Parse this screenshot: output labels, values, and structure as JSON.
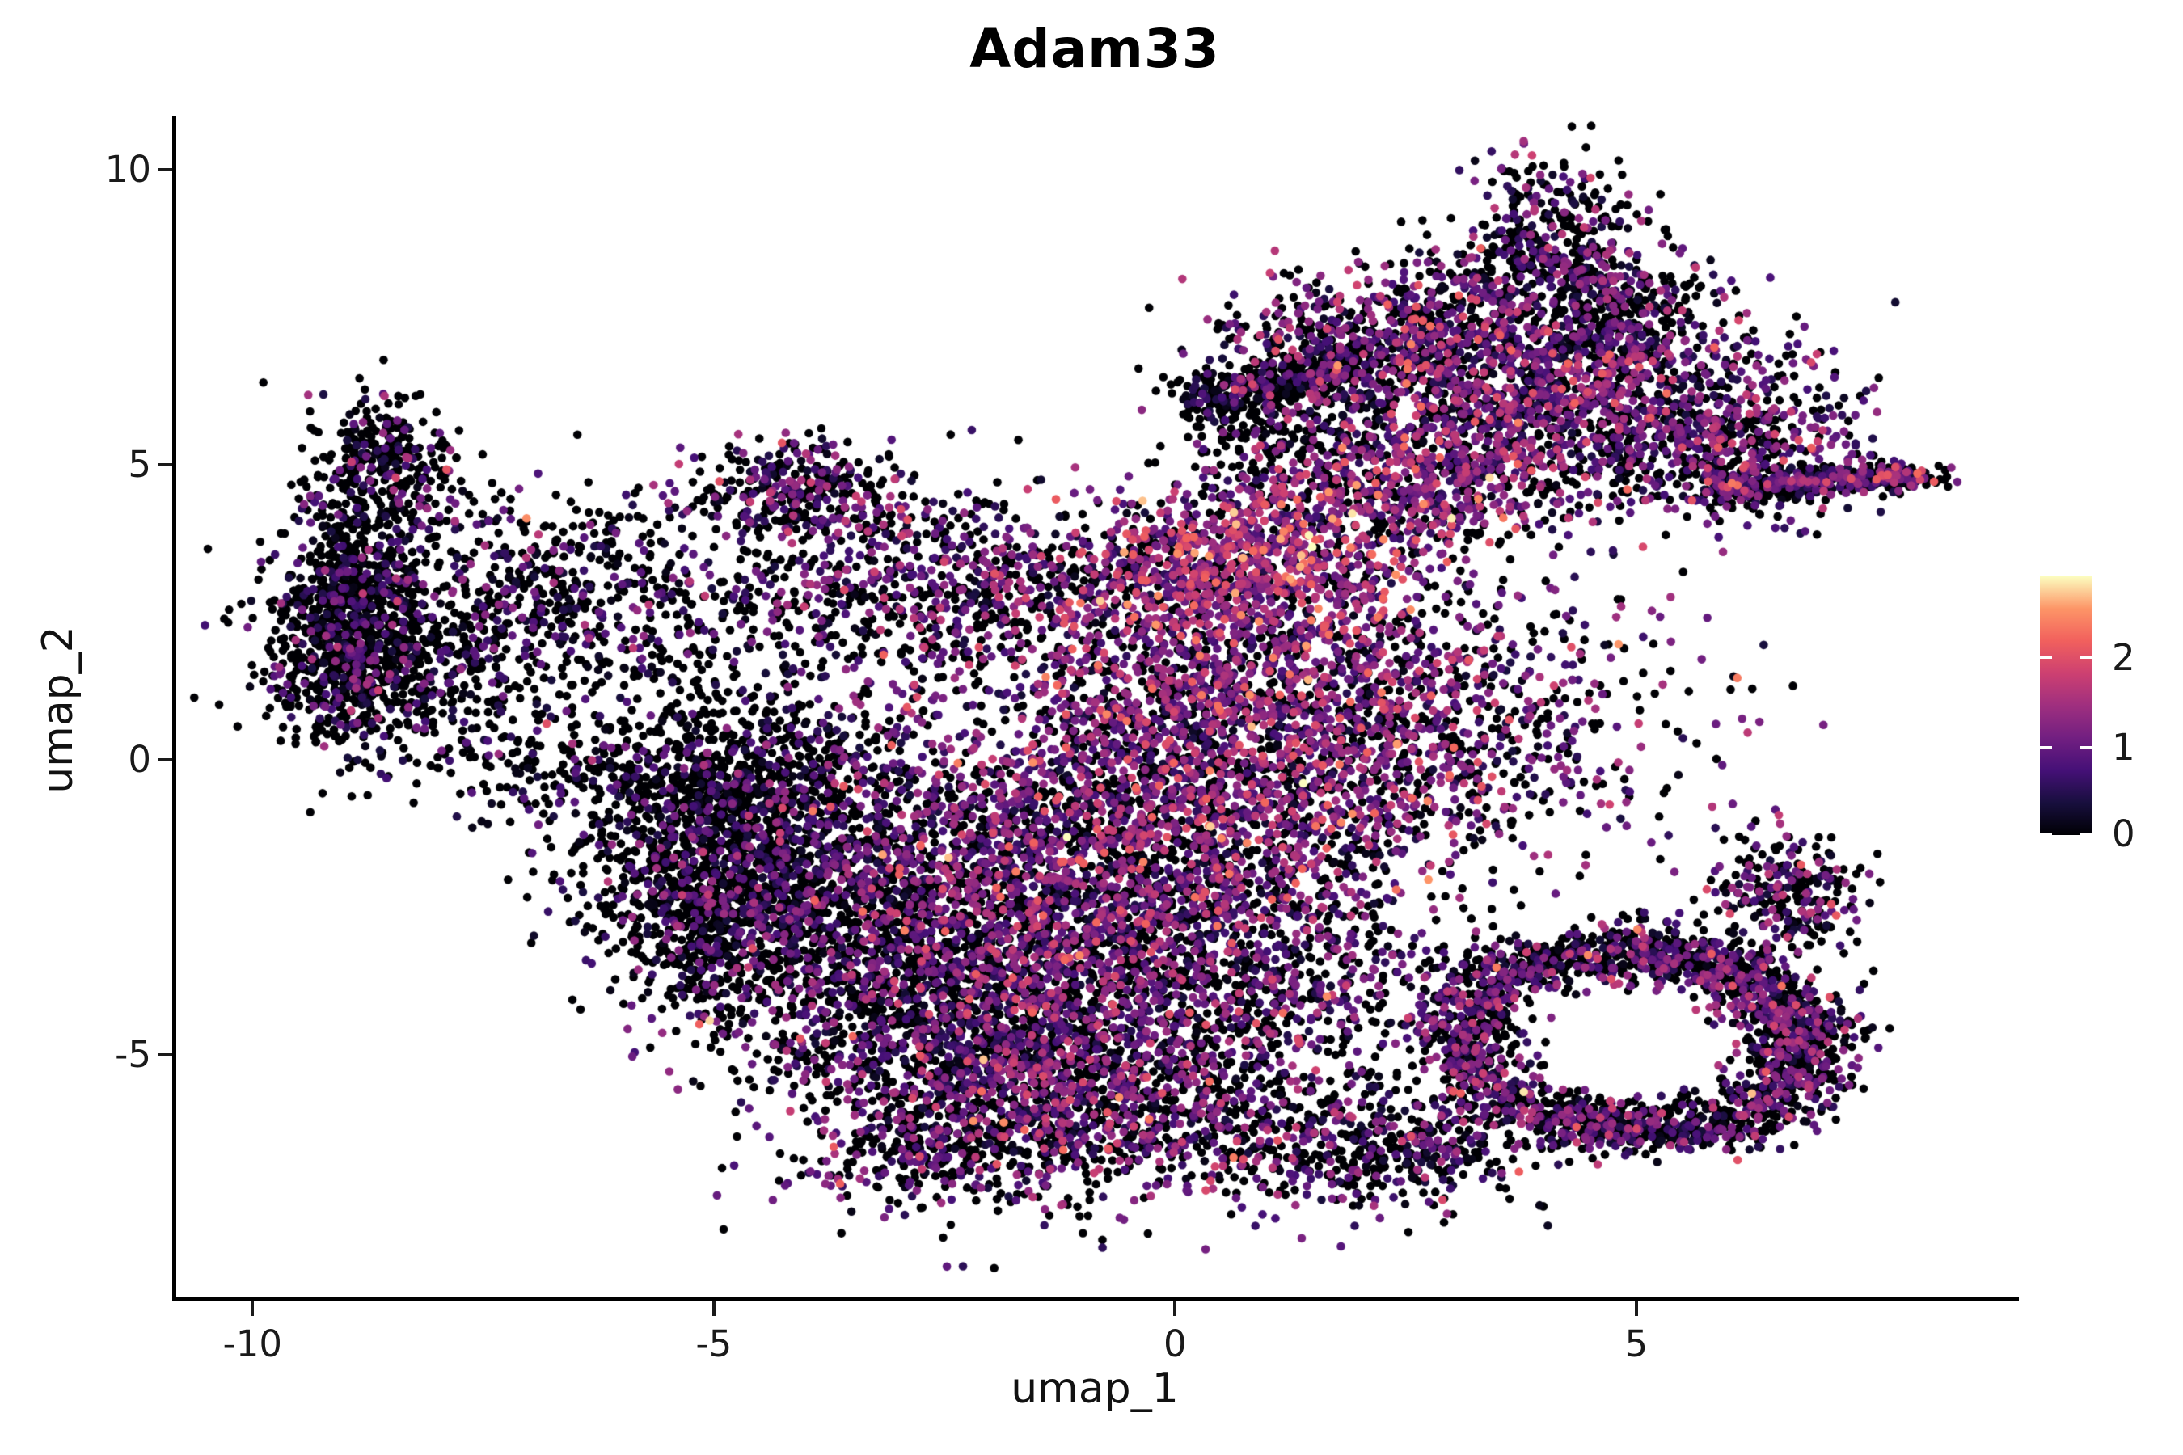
{
  "title": "Adam33",
  "axes": {
    "x": {
      "label": "umap_1",
      "ticks": [
        -10,
        -5,
        0,
        5
      ],
      "range": [
        -10.87,
        9.13
      ]
    },
    "y": {
      "label": "umap_2",
      "ticks": [
        10,
        5,
        0,
        -5
      ],
      "range": [
        -9.11,
        10.92
      ]
    }
  },
  "colorbar": {
    "ticks": [
      0,
      1,
      2
    ],
    "vmin": 0,
    "vmax": 2.9,
    "orientation": "vertical",
    "stops": [
      "#000004",
      "#180f3e",
      "#451077",
      "#721f81",
      "#9f2f7f",
      "#cd4071",
      "#f1605d",
      "#fd9567",
      "#fcfdbf"
    ]
  },
  "chart_data": {
    "type": "scatter",
    "title": "Adam33",
    "xlabel": "umap_1",
    "ylabel": "umap_2",
    "x_range": [
      -10.87,
      9.13
    ],
    "y_range": [
      -9.11,
      10.92
    ],
    "grid": false,
    "legend_position": "right",
    "color_scale": "magma",
    "value_range": [
      0,
      2.87
    ],
    "point_radius_px": 5.3,
    "seed": 20240817,
    "n_points_total": 23390,
    "clusters": [
      {
        "type": "gauss",
        "cx": -8.95,
        "cy": 2.4,
        "sx": 0.42,
        "sy": 1.05,
        "n": 850,
        "p_zero": 0.74,
        "expr_mean": 0.65,
        "expr_sd": 0.45
      },
      {
        "type": "gauss",
        "cx": -8.55,
        "cy": 4.95,
        "sx": 0.38,
        "sy": 0.62,
        "n": 330,
        "p_zero": 0.7,
        "expr_mean": 0.7,
        "expr_sd": 0.5
      },
      {
        "type": "gauss",
        "cx": -8.15,
        "cy": 1.5,
        "sx": 0.75,
        "sy": 0.8,
        "n": 400,
        "p_zero": 0.72,
        "expr_mean": 0.6,
        "expr_sd": 0.45
      },
      {
        "type": "gauss",
        "cx": -7.1,
        "cy": 2.9,
        "sx": 1.1,
        "sy": 0.85,
        "n": 380,
        "p_zero": 0.66,
        "expr_mean": 0.65,
        "expr_sd": 0.45
      },
      {
        "type": "gauss",
        "cx": -5.8,
        "cy": 2.7,
        "sx": 1.0,
        "sy": 0.8,
        "n": 230,
        "p_zero": 0.6,
        "expr_mean": 0.7,
        "expr_sd": 0.5
      },
      {
        "type": "gauss",
        "cx": -6.3,
        "cy": -0.1,
        "sx": 0.9,
        "sy": 0.6,
        "n": 240,
        "p_zero": 0.7,
        "expr_mean": 0.6,
        "expr_sd": 0.45
      },
      {
        "type": "gauss",
        "cx": -4.05,
        "cy": 4.5,
        "sx": 0.6,
        "sy": 0.42,
        "n": 330,
        "p_zero": 0.55,
        "expr_mean": 0.85,
        "expr_sd": 0.5
      },
      {
        "type": "gauss",
        "cx": -3.3,
        "cy": 2.8,
        "sx": 0.95,
        "sy": 0.85,
        "n": 300,
        "p_zero": 0.5,
        "expr_mean": 0.85,
        "expr_sd": 0.5
      },
      {
        "type": "gauss",
        "cx": -4.75,
        "cy": -0.9,
        "sx": 0.8,
        "sy": 1.15,
        "n": 1250,
        "p_zero": 0.78,
        "expr_mean": 0.6,
        "expr_sd": 0.4
      },
      {
        "type": "gauss",
        "cx": -5.2,
        "cy": -2.7,
        "sx": 0.6,
        "sy": 0.8,
        "n": 380,
        "p_zero": 0.74,
        "expr_mean": 0.6,
        "expr_sd": 0.4
      },
      {
        "type": "gauss",
        "cx": -3.6,
        "cy": -2.9,
        "sx": 1.05,
        "sy": 1.2,
        "n": 1050,
        "p_zero": 0.6,
        "expr_mean": 0.8,
        "expr_sd": 0.5
      },
      {
        "type": "gauss",
        "cx": -2.2,
        "cy": -4.7,
        "sx": 1.15,
        "sy": 1.15,
        "n": 1250,
        "p_zero": 0.5,
        "expr_mean": 0.85,
        "expr_sd": 0.55
      },
      {
        "type": "gauss",
        "cx": -0.7,
        "cy": -5.7,
        "sx": 1.0,
        "sy": 0.85,
        "n": 800,
        "p_zero": 0.5,
        "expr_mean": 0.95,
        "expr_sd": 0.55
      },
      {
        "type": "gauss",
        "cx": -2.6,
        "cy": -6.6,
        "sx": 0.8,
        "sy": 0.5,
        "n": 260,
        "p_zero": 0.52,
        "expr_mean": 0.8,
        "expr_sd": 0.5
      },
      {
        "type": "gauss",
        "cx": -1.9,
        "cy": -1.6,
        "sx": 1.35,
        "sy": 1.35,
        "n": 1350,
        "p_zero": 0.42,
        "expr_mean": 0.95,
        "expr_sd": 0.55
      },
      {
        "type": "gauss",
        "cx": -0.3,
        "cy": -3.1,
        "sx": 1.15,
        "sy": 1.15,
        "n": 1050,
        "p_zero": 0.45,
        "expr_mean": 0.95,
        "expr_sd": 0.55
      },
      {
        "type": "gauss",
        "cx": 0.3,
        "cy": -0.8,
        "sx": 1.3,
        "sy": 1.3,
        "n": 1150,
        "p_zero": 0.36,
        "expr_mean": 1.05,
        "expr_sd": 0.55
      },
      {
        "type": "gauss",
        "cx": 0.5,
        "cy": 1.5,
        "sx": 1.25,
        "sy": 1.15,
        "n": 1050,
        "p_zero": 0.3,
        "expr_mean": 1.1,
        "expr_sd": 0.55
      },
      {
        "type": "gauss",
        "cx": 0.7,
        "cy": 3.4,
        "sx": 1.0,
        "sy": 0.62,
        "rot": 18,
        "n": 850,
        "p_zero": 0.22,
        "expr_mean": 1.35,
        "expr_sd": 0.58
      },
      {
        "type": "gauss",
        "cx": -1.8,
        "cy": 3.0,
        "sx": 1.0,
        "sy": 0.7,
        "n": 450,
        "p_zero": 0.48,
        "expr_mean": 0.9,
        "expr_sd": 0.5
      },
      {
        "type": "gauss",
        "cx": 2.6,
        "cy": 0.7,
        "sx": 1.35,
        "sy": 1.3,
        "n": 1000,
        "p_zero": 0.4,
        "expr_mean": 1.0,
        "expr_sd": 0.55
      },
      {
        "type": "gauss",
        "cx": 1.6,
        "cy": -3.7,
        "sx": 0.85,
        "sy": 1.0,
        "n": 330,
        "p_zero": 0.5,
        "expr_mean": 0.9,
        "expr_sd": 0.5
      },
      {
        "type": "gauss",
        "cx": 1.2,
        "cy": -6.3,
        "sx": 0.8,
        "sy": 0.65,
        "n": 300,
        "p_zero": 0.55,
        "expr_mean": 0.85,
        "expr_sd": 0.5
      },
      {
        "type": "ring",
        "cx": 4.95,
        "cy": -4.75,
        "rx": 1.9,
        "ry": 1.5,
        "r_sd": 0.16,
        "rot": -12,
        "n": 2500,
        "p_zero": 0.52,
        "expr_mean": 0.85,
        "expr_sd": 0.5,
        "left_keep": 0.75
      },
      {
        "type": "gauss",
        "cx": 6.6,
        "cy": -2.35,
        "sx": 0.45,
        "sy": 0.6,
        "n": 280,
        "p_zero": 0.5,
        "expr_mean": 0.85,
        "expr_sd": 0.5
      },
      {
        "type": "gauss",
        "cx": 2.7,
        "cy": -6.6,
        "sx": 0.65,
        "sy": 0.5,
        "n": 300,
        "p_zero": 0.55,
        "expr_mean": 0.8,
        "expr_sd": 0.5
      },
      {
        "type": "gauss",
        "cx": 3.9,
        "cy": 6.2,
        "sx": 1.35,
        "sy": 0.95,
        "n": 1700,
        "p_zero": 0.38,
        "expr_mean": 0.95,
        "expr_sd": 0.55
      },
      {
        "type": "gauss",
        "cx": 4.15,
        "cy": 8.7,
        "sx": 0.5,
        "sy": 0.72,
        "n": 430,
        "p_zero": 0.55,
        "expr_mean": 0.85,
        "expr_sd": 0.5
      },
      {
        "type": "gauss",
        "cx": 4.9,
        "cy": 7.5,
        "sx": 0.4,
        "sy": 0.5,
        "n": 200,
        "p_zero": 0.68,
        "expr_mean": 0.6,
        "expr_sd": 0.4
      },
      {
        "type": "gauss",
        "cx": 1.85,
        "cy": 6.9,
        "sx": 0.72,
        "sy": 0.58,
        "n": 430,
        "p_zero": 0.45,
        "expr_mean": 0.95,
        "expr_sd": 0.55
      },
      {
        "type": "line",
        "x1": 0.15,
        "y1": 6.05,
        "x2": 2.0,
        "y2": 6.8,
        "w": 0.17,
        "n": 270,
        "p_zero": 0.8,
        "expr_mean": 0.55,
        "expr_sd": 0.4
      },
      {
        "type": "gauss",
        "cx": 2.7,
        "cy": 4.7,
        "sx": 0.85,
        "sy": 0.55,
        "n": 420,
        "p_zero": 0.35,
        "expr_mean": 1.1,
        "expr_sd": 0.55
      },
      {
        "type": "gauss",
        "cx": 5.95,
        "cy": 5.25,
        "sx": 0.8,
        "sy": 0.65,
        "n": 450,
        "p_zero": 0.5,
        "expr_mean": 0.9,
        "expr_sd": 0.5
      },
      {
        "type": "line",
        "x1": 5.85,
        "y1": 4.62,
        "x2": 7.95,
        "y2": 4.82,
        "w": 0.13,
        "n": 380,
        "p_zero": 0.52,
        "expr_mean": 0.85,
        "expr_sd": 0.5
      },
      {
        "type": "gauss",
        "cx": 7.9,
        "cy": 4.8,
        "sx": 0.22,
        "sy": 0.1,
        "n": 90,
        "p_zero": 0.5,
        "expr_mean": 0.9,
        "expr_sd": 0.6
      },
      {
        "type": "gauss",
        "cx": 2.9,
        "cy": 7.7,
        "sx": 0.5,
        "sy": 0.45,
        "n": 130,
        "p_zero": 0.55,
        "expr_mean": 0.8,
        "expr_sd": 0.5
      },
      {
        "type": "gauss",
        "cx": 1.2,
        "cy": 4.6,
        "sx": 0.45,
        "sy": 0.4,
        "n": 70,
        "p_zero": 0.5,
        "expr_mean": 0.9,
        "expr_sd": 0.5
      },
      {
        "type": "gauss",
        "cx": 0.95,
        "cy": 5.75,
        "sx": 0.5,
        "sy": 0.45,
        "n": 160,
        "p_zero": 0.82,
        "expr_mean": 0.5,
        "expr_sd": 0.35
      }
    ]
  }
}
